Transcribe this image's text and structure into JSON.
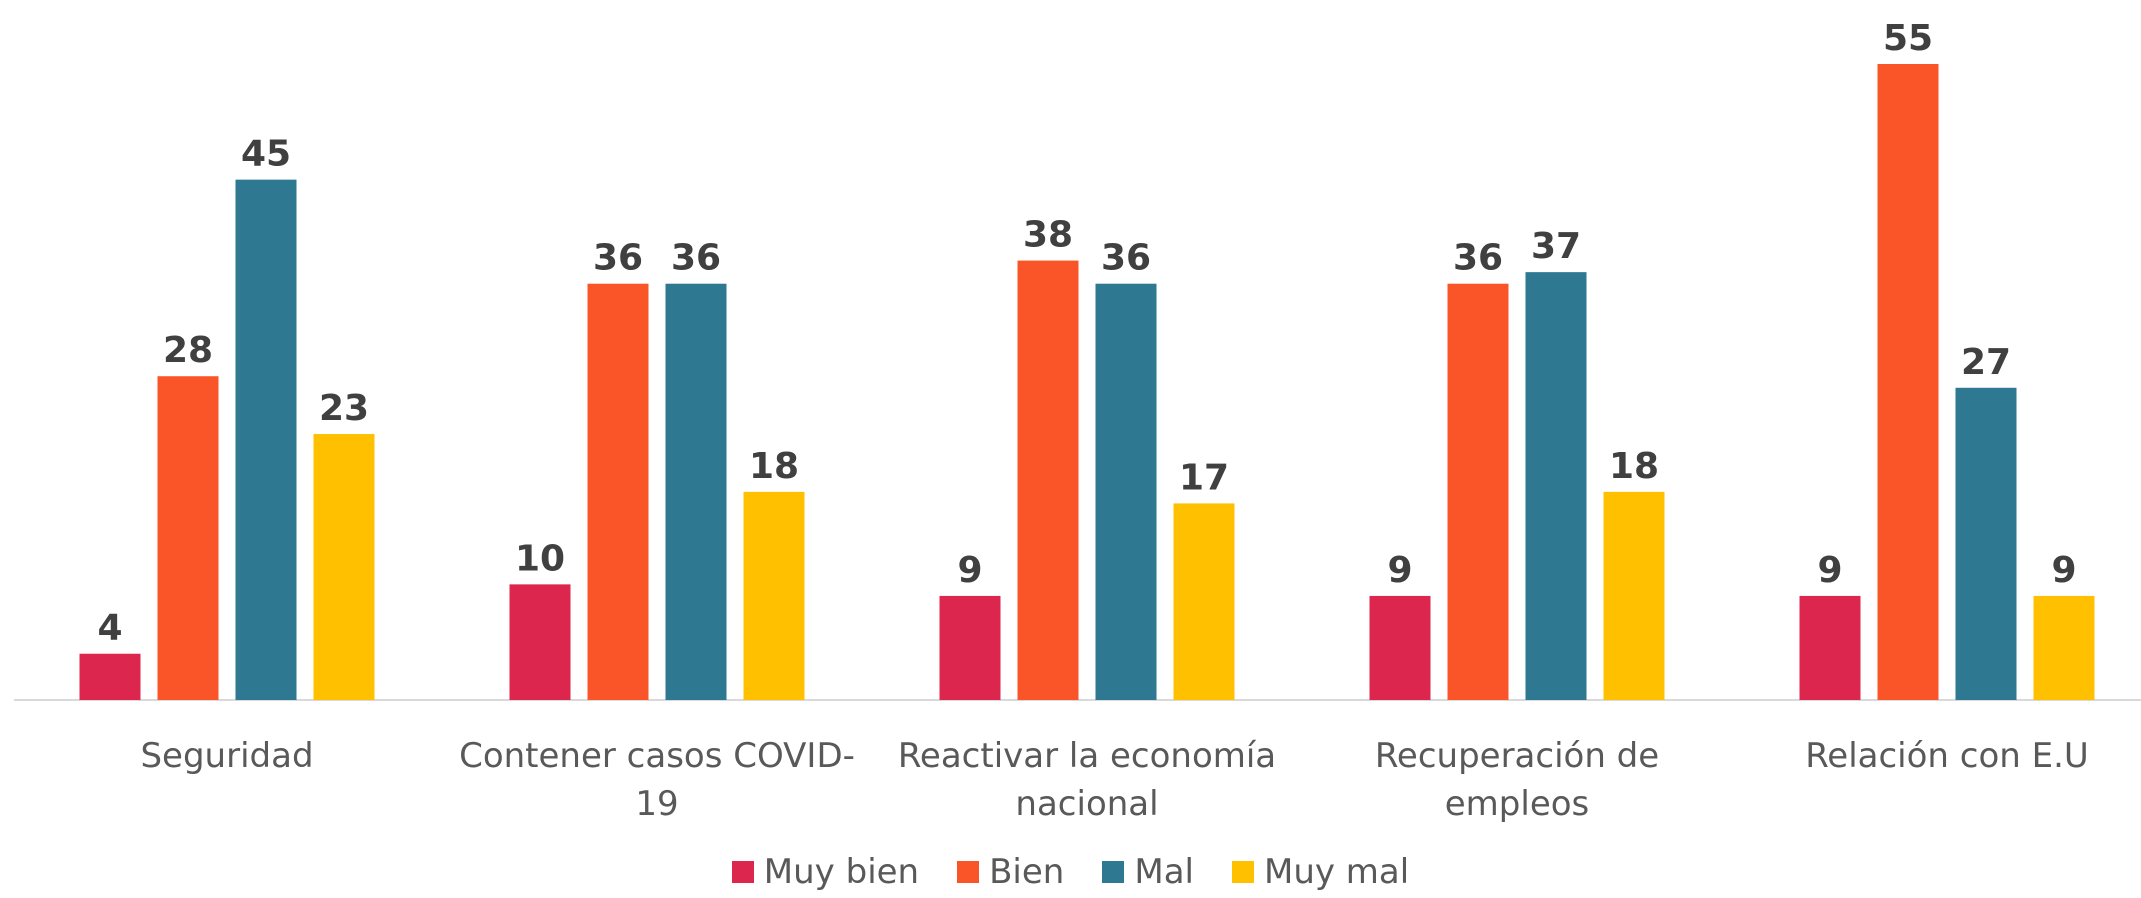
{
  "chart_data": {
    "type": "bar",
    "categories": [
      "Seguridad",
      "Contener casos COVID-19",
      "Reactivar la economía nacional",
      "Recuperación de empleos",
      "Relación con E.U"
    ],
    "series": [
      {
        "name": "Muy bien",
        "color": "#dc264e",
        "values": [
          4,
          10,
          9,
          9,
          9
        ]
      },
      {
        "name": "Bien",
        "color": "#fa5529",
        "values": [
          28,
          36,
          38,
          36,
          55
        ]
      },
      {
        "name": "Mal",
        "color": "#2e7891",
        "values": [
          45,
          36,
          36,
          37,
          27
        ]
      },
      {
        "name": "Muy mal",
        "color": "#ffc000",
        "values": [
          23,
          18,
          17,
          18,
          9
        ]
      }
    ],
    "ylim": [
      0,
      55
    ],
    "legend": "bottom"
  }
}
